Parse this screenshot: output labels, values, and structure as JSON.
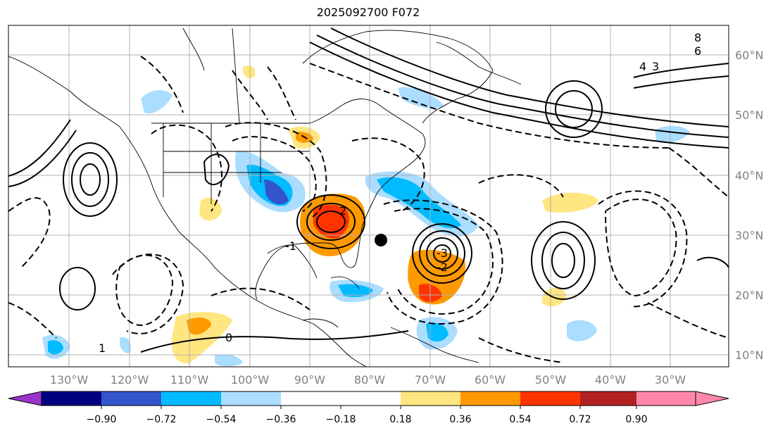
{
  "title": "2025092700 F072",
  "map": {
    "longitude_labels": [
      "130°W",
      "120°W",
      "110°W",
      "100°W",
      "90°W",
      "80°W",
      "70°W",
      "60°W",
      "50°W",
      "40°W",
      "30°W"
    ],
    "latitude_labels": [
      "60°N",
      "50°N",
      "40°N",
      "30°N",
      "20°N",
      "10°N"
    ],
    "contour_labels": [
      "8",
      "6",
      "4",
      "3",
      "2",
      "1",
      "0",
      "-1",
      "-2",
      "-3"
    ],
    "marker": "storm-center-dot"
  },
  "colorbar": {
    "tick_labels": [
      "−0.90",
      "−0.72",
      "−0.54",
      "−0.36",
      "−0.18",
      "0.18",
      "0.36",
      "0.54",
      "0.72",
      "0.90"
    ],
    "colors": [
      "#9933cc",
      "#000080",
      "#3355cc",
      "#00bbff",
      "#aaddff",
      "#ffffff",
      "#ffe680",
      "#ff9900",
      "#ff3300",
      "#b22222",
      "#ff88aa"
    ]
  }
}
